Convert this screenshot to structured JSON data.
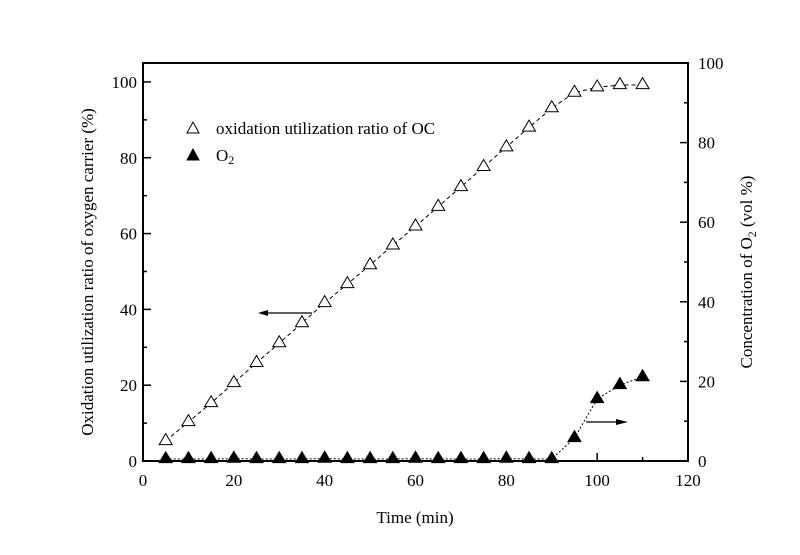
{
  "chart_data": {
    "type": "scatter",
    "title": "",
    "xlabel": "Time (min)",
    "ylabel": "Oxidation utilization ratio of oxygen carrier (%)",
    "ylabel_right": "Concentration of O₂ (vol %)",
    "xlim": [
      0,
      120
    ],
    "ylim": [
      0,
      105
    ],
    "ylim_right": [
      0,
      100
    ],
    "x_ticks": [
      0,
      20,
      40,
      60,
      80,
      100,
      120
    ],
    "y_ticks": [
      0,
      20,
      40,
      60,
      80,
      100
    ],
    "y_ticks_right": [
      0,
      20,
      40,
      60,
      80,
      100
    ],
    "grid": false,
    "legend_position": "top-left",
    "series": [
      {
        "name": "oxidation utilization ratio of OC",
        "axis": "left",
        "marker": "open-triangle",
        "line": "dashed",
        "x": [
          5,
          10,
          15,
          20,
          25,
          30,
          35,
          40,
          45,
          50,
          55,
          60,
          65,
          70,
          75,
          80,
          85,
          90,
          95,
          100,
          105,
          110
        ],
        "values": [
          5.3,
          10.3,
          15.3,
          20.6,
          25.9,
          31.1,
          36.4,
          41.7,
          46.7,
          51.7,
          56.9,
          61.9,
          67.1,
          72.3,
          77.6,
          82.8,
          88.0,
          93.1,
          97.2,
          98.6,
          99.2,
          99.2
        ]
      },
      {
        "name": "O2",
        "axis": "right",
        "marker": "filled-triangle",
        "line": "dotted",
        "x": [
          5,
          10,
          15,
          20,
          25,
          30,
          35,
          40,
          45,
          50,
          55,
          60,
          65,
          70,
          75,
          80,
          85,
          90,
          95,
          100,
          105,
          110
        ],
        "values": [
          0.5,
          0.5,
          0.5,
          0.6,
          0.5,
          0.5,
          0.5,
          0.6,
          0.5,
          0.5,
          0.5,
          0.6,
          0.5,
          0.5,
          0.5,
          0.6,
          0.5,
          0.5,
          5.8,
          15.6,
          19.1,
          21.1
        ]
      }
    ],
    "legend": [
      {
        "label": "oxidation utilization ratio of OC",
        "marker": "open-triangle"
      },
      {
        "label": "O",
        "subscript": "2",
        "marker": "filled-triangle"
      }
    ],
    "annotations": [
      {
        "type": "arrow",
        "direction": "left",
        "points_to": "left-axis",
        "series": "oxidation utilization ratio of OC"
      },
      {
        "type": "arrow",
        "direction": "right",
        "points_to": "right-axis",
        "series": "O2"
      }
    ]
  },
  "labels": {
    "xlabel": "Time (min)",
    "ylabel": "Oxidation utilization ratio of oxygen carrier (%)",
    "ylabel_right_main": "Concentration of O",
    "ylabel_right_sub": "2",
    "ylabel_right_tail": " (vol %)",
    "legend_oc": "oxidation utilization ratio of OC",
    "legend_o2_main": "O",
    "legend_o2_sub": "2"
  }
}
